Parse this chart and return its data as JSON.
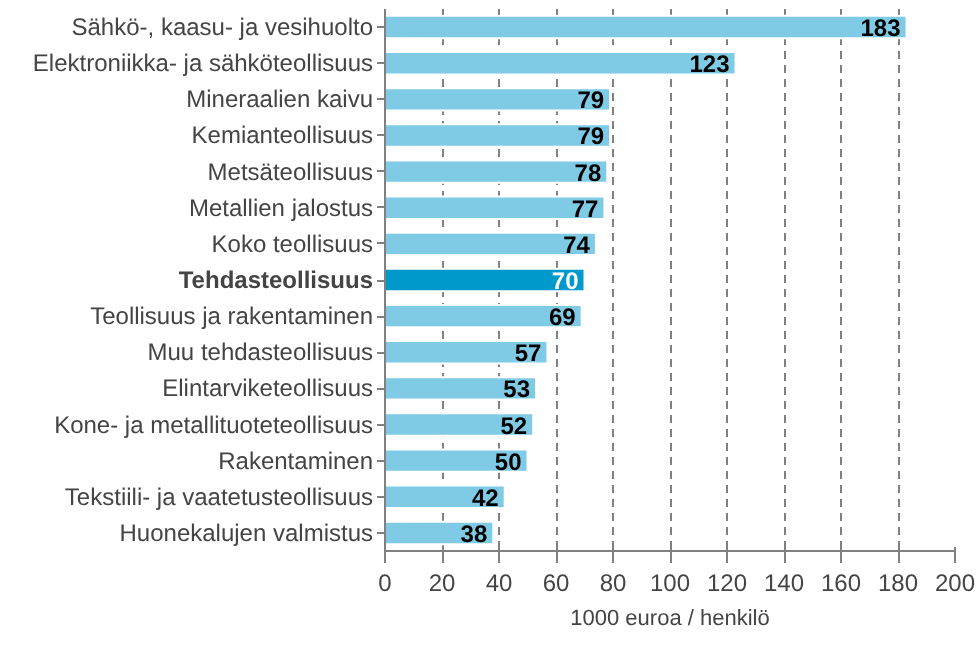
{
  "chart_data": {
    "type": "bar",
    "orientation": "horizontal",
    "xlabel": "1000 euroa / henkilö",
    "categories": [
      "Sähkö-, kaasu- ja vesihuolto",
      "Elektroniikka- ja sähköteollisuus",
      "Mineraalien kaivu",
      "Kemianteollisuus",
      "Metsäteollisuus",
      "Metallien jalostus",
      "Koko teollisuus",
      "Tehdasteollisuus",
      "Teollisuus ja rakentaminen",
      "Muu tehdasteollisuus",
      "Elintarviketeollisuus",
      "Kone- ja metallituoteteollisuus",
      "Rakentaminen",
      "Tekstiili- ja vaatetusteollisuus",
      "Huonekalujen valmistus"
    ],
    "values": [
      183,
      123,
      79,
      79,
      78,
      77,
      74,
      70,
      69,
      57,
      53,
      52,
      50,
      42,
      38
    ],
    "colors": [
      "#7fcbe6",
      "#7fcbe6",
      "#7fcbe6",
      "#7fcbe6",
      "#7fcbe6",
      "#7fcbe6",
      "#7fcbe6",
      "#0099cc",
      "#7fcbe6",
      "#7fcbe6",
      "#7fcbe6",
      "#7fcbe6",
      "#7fcbe6",
      "#7fcbe6",
      "#7fcbe6"
    ],
    "xlim": [
      0,
      200
    ],
    "xticks": [
      0,
      20,
      40,
      60,
      80,
      100,
      120,
      140,
      160,
      180,
      200
    ],
    "grid": "x",
    "data_labels": true
  }
}
